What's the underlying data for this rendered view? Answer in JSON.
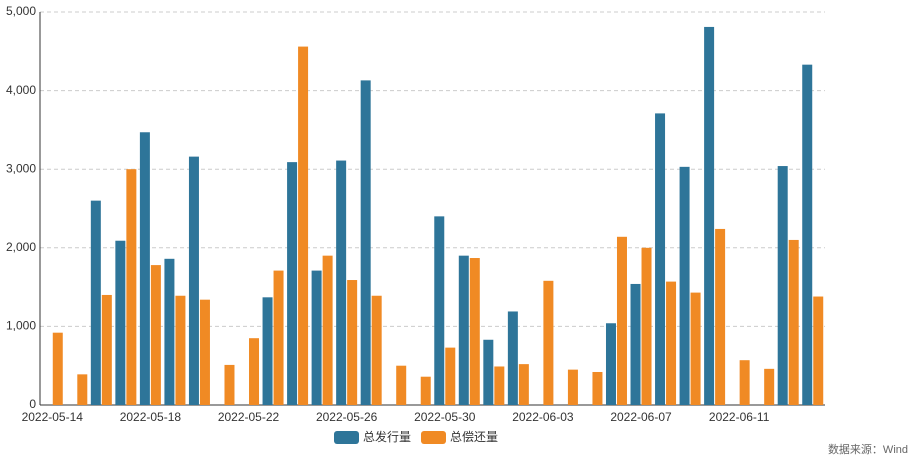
{
  "chart_data": {
    "type": "bar",
    "categories": [
      "2022-05-14",
      null,
      null,
      null,
      "2022-05-18",
      null,
      null,
      null,
      "2022-05-22",
      null,
      null,
      null,
      "2022-05-26",
      null,
      null,
      null,
      "2022-05-30",
      null,
      null,
      null,
      "2022-06-03",
      null,
      null,
      null,
      "2022-06-07",
      null,
      null,
      null,
      "2022-06-11",
      null,
      null,
      null
    ],
    "series": [
      {
        "name": "总发行量",
        "color": "#2e7599",
        "values": [
          null,
          null,
          2600,
          2090,
          3470,
          1860,
          3160,
          null,
          null,
          1370,
          3090,
          1710,
          3110,
          4130,
          null,
          null,
          2400,
          1900,
          830,
          1190,
          null,
          null,
          null,
          1040,
          1540,
          3710,
          3030,
          4810,
          null,
          null,
          3040,
          4330
        ]
      },
      {
        "name": "总偿还量",
        "color": "#f08a24",
        "values": [
          920,
          390,
          1400,
          3000,
          1780,
          1390,
          1340,
          510,
          850,
          1710,
          4560,
          1900,
          1590,
          1390,
          500,
          360,
          730,
          1870,
          490,
          520,
          1580,
          450,
          420,
          2140,
          2000,
          1570,
          1430,
          2240,
          570,
          460,
          2100,
          1380
        ]
      }
    ],
    "ylim": [
      0,
      5000
    ],
    "yticks": [
      0,
      {
        "value": 1000,
        "label": "1,000"
      },
      {
        "value": 2000,
        "label": "2,000"
      },
      {
        "value": 3000,
        "label": "3,000"
      },
      {
        "value": 4000,
        "label": "4,000"
      },
      {
        "value": 5000,
        "label": "5,000"
      }
    ],
    "grid": true,
    "legend": "bottom",
    "source": "数据来源：Wind"
  }
}
